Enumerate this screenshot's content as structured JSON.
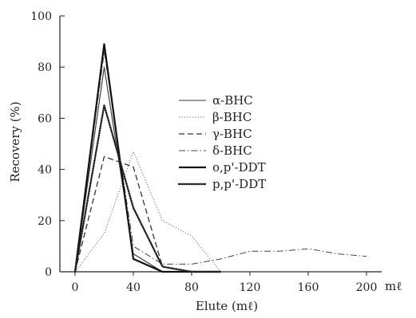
{
  "chart_data": {
    "type": "line",
    "xlabel": "Elute (mℓ)",
    "x_unit": "mℓ",
    "ylabel": "Recovery (%)",
    "xlim": [
      0,
      200
    ],
    "ylim": [
      0,
      100
    ],
    "x_ticks": [
      "0",
      "40",
      "80",
      "120",
      "160",
      "200"
    ],
    "y_ticks": [
      "0",
      "20",
      "40",
      "60",
      "80",
      "100"
    ],
    "grid": false,
    "legend_position": "right",
    "series": [
      {
        "name": "α-BHC",
        "style": "solid-thin",
        "points": [
          [
            0,
            0
          ],
          [
            20,
            80
          ],
          [
            40,
            7
          ],
          [
            60,
            0
          ],
          [
            80,
            0
          ],
          [
            100,
            0
          ],
          [
            120,
            0
          ],
          [
            160,
            0
          ],
          [
            200,
            0
          ]
        ]
      },
      {
        "name": "β-BHC",
        "style": "dotted-fine",
        "points": [
          [
            0,
            0
          ],
          [
            20,
            15
          ],
          [
            40,
            47
          ],
          [
            60,
            20
          ],
          [
            80,
            14
          ],
          [
            100,
            0
          ]
        ]
      },
      {
        "name": "γ-BHC",
        "style": "dashed",
        "points": [
          [
            0,
            0
          ],
          [
            20,
            45
          ],
          [
            40,
            41
          ],
          [
            60,
            2
          ],
          [
            80,
            0
          ],
          [
            100,
            0
          ]
        ]
      },
      {
        "name": "δ-BHC",
        "style": "dash-dot",
        "points": [
          [
            0,
            0
          ],
          [
            20,
            86
          ],
          [
            40,
            10
          ],
          [
            60,
            3
          ],
          [
            80,
            3
          ],
          [
            100,
            5
          ],
          [
            120,
            8
          ],
          [
            140,
            8
          ],
          [
            160,
            9
          ],
          [
            180,
            7
          ],
          [
            200,
            6
          ]
        ]
      },
      {
        "name": "o,p'-DDT",
        "style": "solid-thick",
        "points": [
          [
            0,
            0
          ],
          [
            20,
            89
          ],
          [
            40,
            5
          ],
          [
            60,
            0
          ],
          [
            80,
            0
          ],
          [
            100,
            0
          ]
        ]
      },
      {
        "name": "p,p'-DDT",
        "style": "dotted-thick",
        "points": [
          [
            0,
            0
          ],
          [
            20,
            65
          ],
          [
            40,
            25
          ],
          [
            60,
            2
          ],
          [
            80,
            0
          ],
          [
            100,
            0
          ]
        ]
      }
    ]
  }
}
